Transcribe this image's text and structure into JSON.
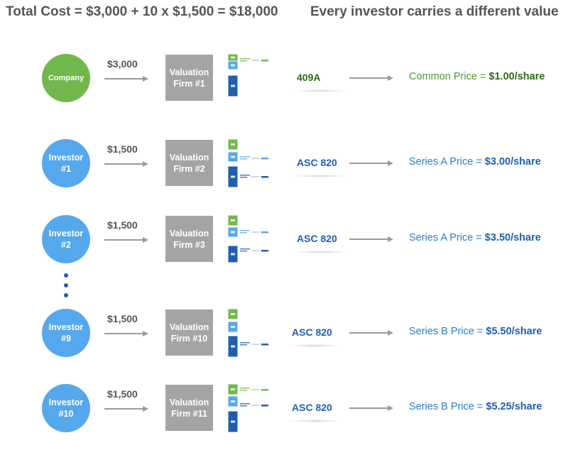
{
  "header": {
    "total_cost": "Total Cost = $3,000 + 10 x $1,500 = $18,000",
    "subtitle": "Every investor carries a different value"
  },
  "colors": {
    "company_green": "#71b84c",
    "investor_blue": "#55a8ec",
    "firm_gray": "#a4a4a4",
    "arrow_gray": "#9a9a9a",
    "text_gray": "#555555",
    "common_green": "#4f9a2e",
    "common_green_dark": "#2e6b16",
    "series_blue": "#2e7cc4",
    "series_blue_dark": "#1f5fae"
  },
  "rows": [
    {
      "entity": "Company",
      "entity_type": "company",
      "cost": "$3,000",
      "firm": "Valuation\nFirm #1",
      "method": "409A",
      "price_prefix": "Common Price = ",
      "price_value": "$1.00/share",
      "highlight": "top"
    },
    {
      "entity": "Investor\n#1",
      "entity_type": "investor",
      "cost": "$1,500",
      "firm": "Valuation\nFirm #2",
      "method": "ASC 820",
      "price_prefix": "Series A Price = ",
      "price_value": "$3.00/share",
      "highlight": "middle"
    },
    {
      "entity": "Investor\n#2",
      "entity_type": "investor",
      "cost": "$1,500",
      "firm": "Valuation\nFirm #3",
      "method": "ASC 820",
      "price_prefix": "Series A Price = ",
      "price_value": "$3.50/share",
      "highlight": "middle2"
    },
    {
      "entity": "Investor\n#9",
      "entity_type": "investor",
      "cost": "$1,500",
      "firm": "Valuation\nFirm #10",
      "method": "ASC 820",
      "price_prefix": "Series B Price = ",
      "price_value": "$5.50/share",
      "highlight": "bottom"
    },
    {
      "entity": "Investor\n#10",
      "entity_type": "investor",
      "cost": "$1,500",
      "firm": "Valuation\nFirm #11",
      "method": "ASC 820",
      "price_prefix": "Series B Price = ",
      "price_value": "$5.25/share",
      "highlight": "top2"
    }
  ]
}
